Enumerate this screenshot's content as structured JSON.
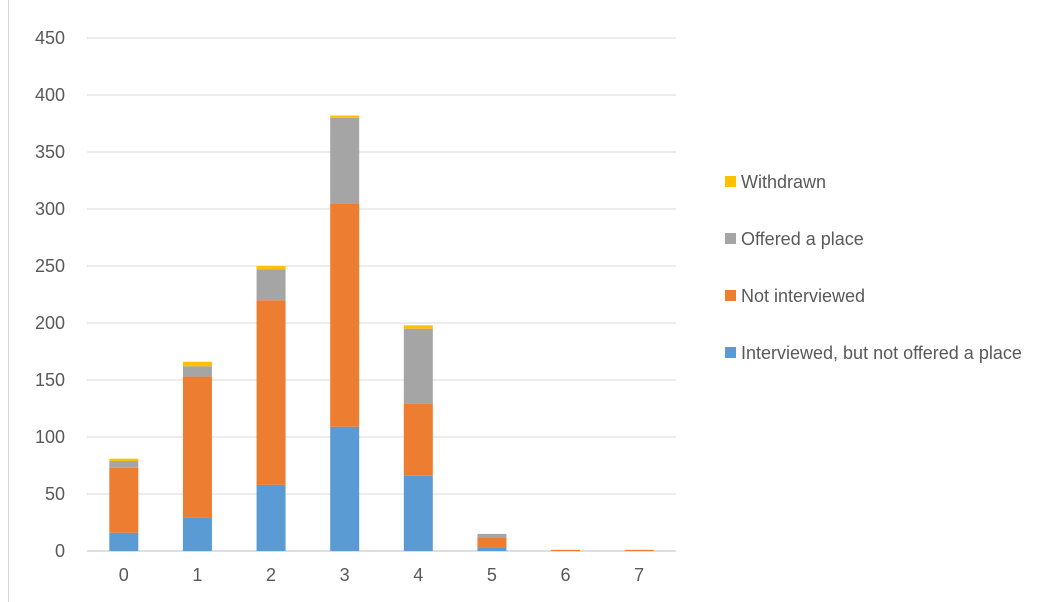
{
  "chart_data": {
    "type": "bar",
    "stacked": true,
    "title": "",
    "xlabel": "",
    "ylabel": "",
    "categories": [
      "0",
      "1",
      "2",
      "3",
      "4",
      "5",
      "6",
      "7"
    ],
    "ylim": [
      0,
      450
    ],
    "yticks": [
      "0",
      "50",
      "100",
      "150",
      "200",
      "250",
      "300",
      "350",
      "400",
      "450"
    ],
    "grid": true,
    "legend_position": "right",
    "series": [
      {
        "name": "Interviewed, but not offered a place",
        "color": "#5b9bd5",
        "values": [
          16,
          29,
          58,
          109,
          66,
          3,
          0,
          0
        ]
      },
      {
        "name": "Not interviewed",
        "color": "#ed7d31",
        "values": [
          57,
          124,
          162,
          196,
          63,
          9,
          1,
          1
        ]
      },
      {
        "name": "Offered a place",
        "color": "#a5a5a5",
        "values": [
          6,
          9,
          27,
          75,
          66,
          3,
          0,
          0
        ]
      },
      {
        "name": "Withdrawn",
        "color": "#ffc000",
        "values": [
          2,
          4,
          3,
          2,
          3,
          0,
          0,
          0
        ]
      }
    ]
  }
}
